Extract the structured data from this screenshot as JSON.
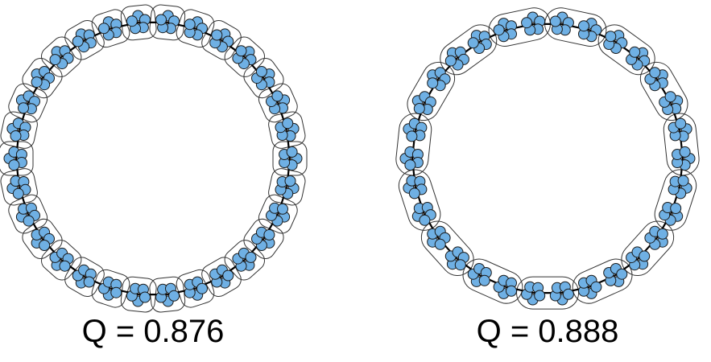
{
  "panels": [
    {
      "caption": "Q = 0.876",
      "clique_count": 30,
      "nodes_per_clique": 5,
      "cliques_per_community": 1
    },
    {
      "caption": "Q = 0.888",
      "clique_count": 30,
      "nodes_per_clique": 5,
      "cliques_per_community": 2
    }
  ],
  "colors": {
    "node_fill": "#6fb0e4",
    "node_stroke": "#1a1a1a",
    "edge": "#000000",
    "community_outline": "#333333",
    "background": "#ffffff"
  }
}
